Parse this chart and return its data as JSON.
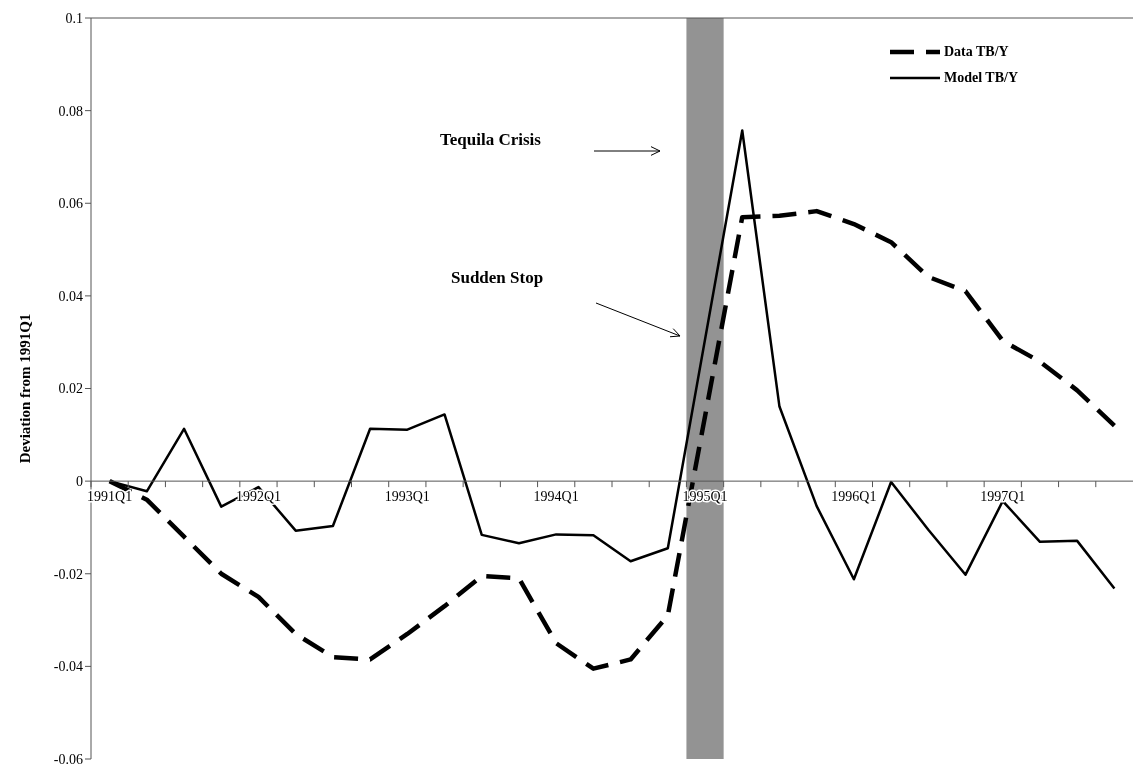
{
  "chart_data": {
    "type": "line",
    "ylabel": "Deviation from 1991Q1",
    "categories": [
      "1991Q1",
      null,
      null,
      null,
      "1992Q1",
      null,
      null,
      null,
      "1993Q1",
      null,
      null,
      null,
      "1994Q1",
      null,
      null,
      null,
      "1995Q1",
      null,
      null,
      null,
      "1996Q1",
      null,
      null,
      null,
      "1997Q1",
      null,
      null,
      null
    ],
    "series": [
      {
        "name": "Data TB/Y",
        "color": "#000000",
        "line_style": "dashed",
        "values": [
          0,
          -0.004,
          -0.012,
          -0.02,
          -0.025,
          -0.033,
          -0.038,
          -0.0385,
          -0.033,
          -0.027,
          -0.0205,
          -0.021,
          -0.035,
          -0.0405,
          -0.0385,
          -0.029,
          null,
          0.057,
          0.0573,
          0.0583,
          0.0555,
          0.0516,
          0.0441,
          0.041,
          0.0303,
          0.0258,
          0.0196,
          0.012
        ]
      },
      {
        "name": "Model TB/Y",
        "color": "#000000",
        "line_style": "solid",
        "values": [
          0,
          -0.0022,
          0.0113,
          -0.0055,
          -0.0013,
          -0.0107,
          -0.0097,
          0.0113,
          0.0111,
          0.0144,
          -0.0116,
          -0.0134,
          -0.0115,
          -0.0117,
          -0.0173,
          -0.0145,
          null,
          0.0757,
          0.0161,
          -0.0054,
          -0.0212,
          -0.0002,
          -0.0105,
          -0.0202,
          -0.0043,
          -0.0131,
          -0.0129,
          -0.0232
        ]
      }
    ],
    "ylim": [
      -0.06,
      0.1
    ],
    "yticks": [
      -0.06,
      -0.04,
      -0.02,
      0,
      0.02,
      0.04,
      0.06,
      0.08,
      0.1
    ],
    "bands": [
      {
        "axis": "x",
        "from": "1995Q1",
        "to": "1995Q1",
        "color": "#939393"
      }
    ],
    "annotations": [
      "Tequila Crisis",
      "Sudden Stop"
    ],
    "grid": false,
    "legend": "top right",
    "marker": "none"
  }
}
